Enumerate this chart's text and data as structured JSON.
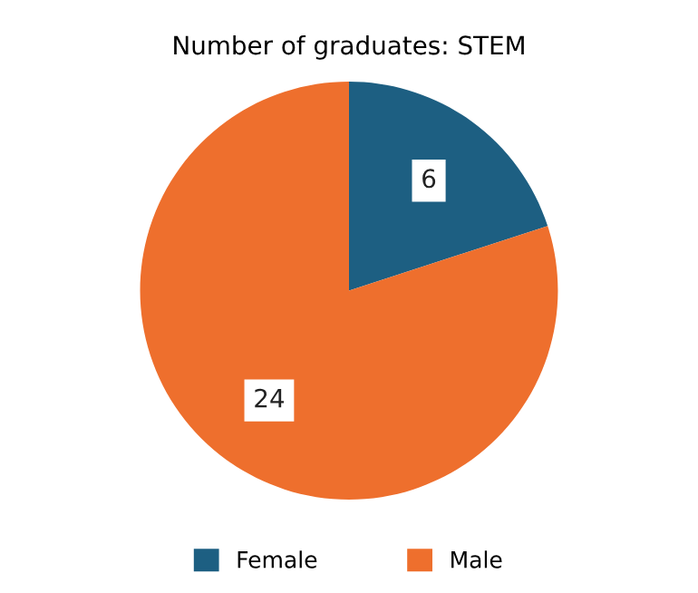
{
  "chart_data": {
    "type": "pie",
    "title": "Number of graduates: STEM",
    "categories": [
      "Female",
      "Male"
    ],
    "values": [
      6,
      24
    ],
    "colors": [
      "#1d5f82",
      "#ee6f2d"
    ],
    "data_labels": true,
    "legend": "bottom"
  }
}
